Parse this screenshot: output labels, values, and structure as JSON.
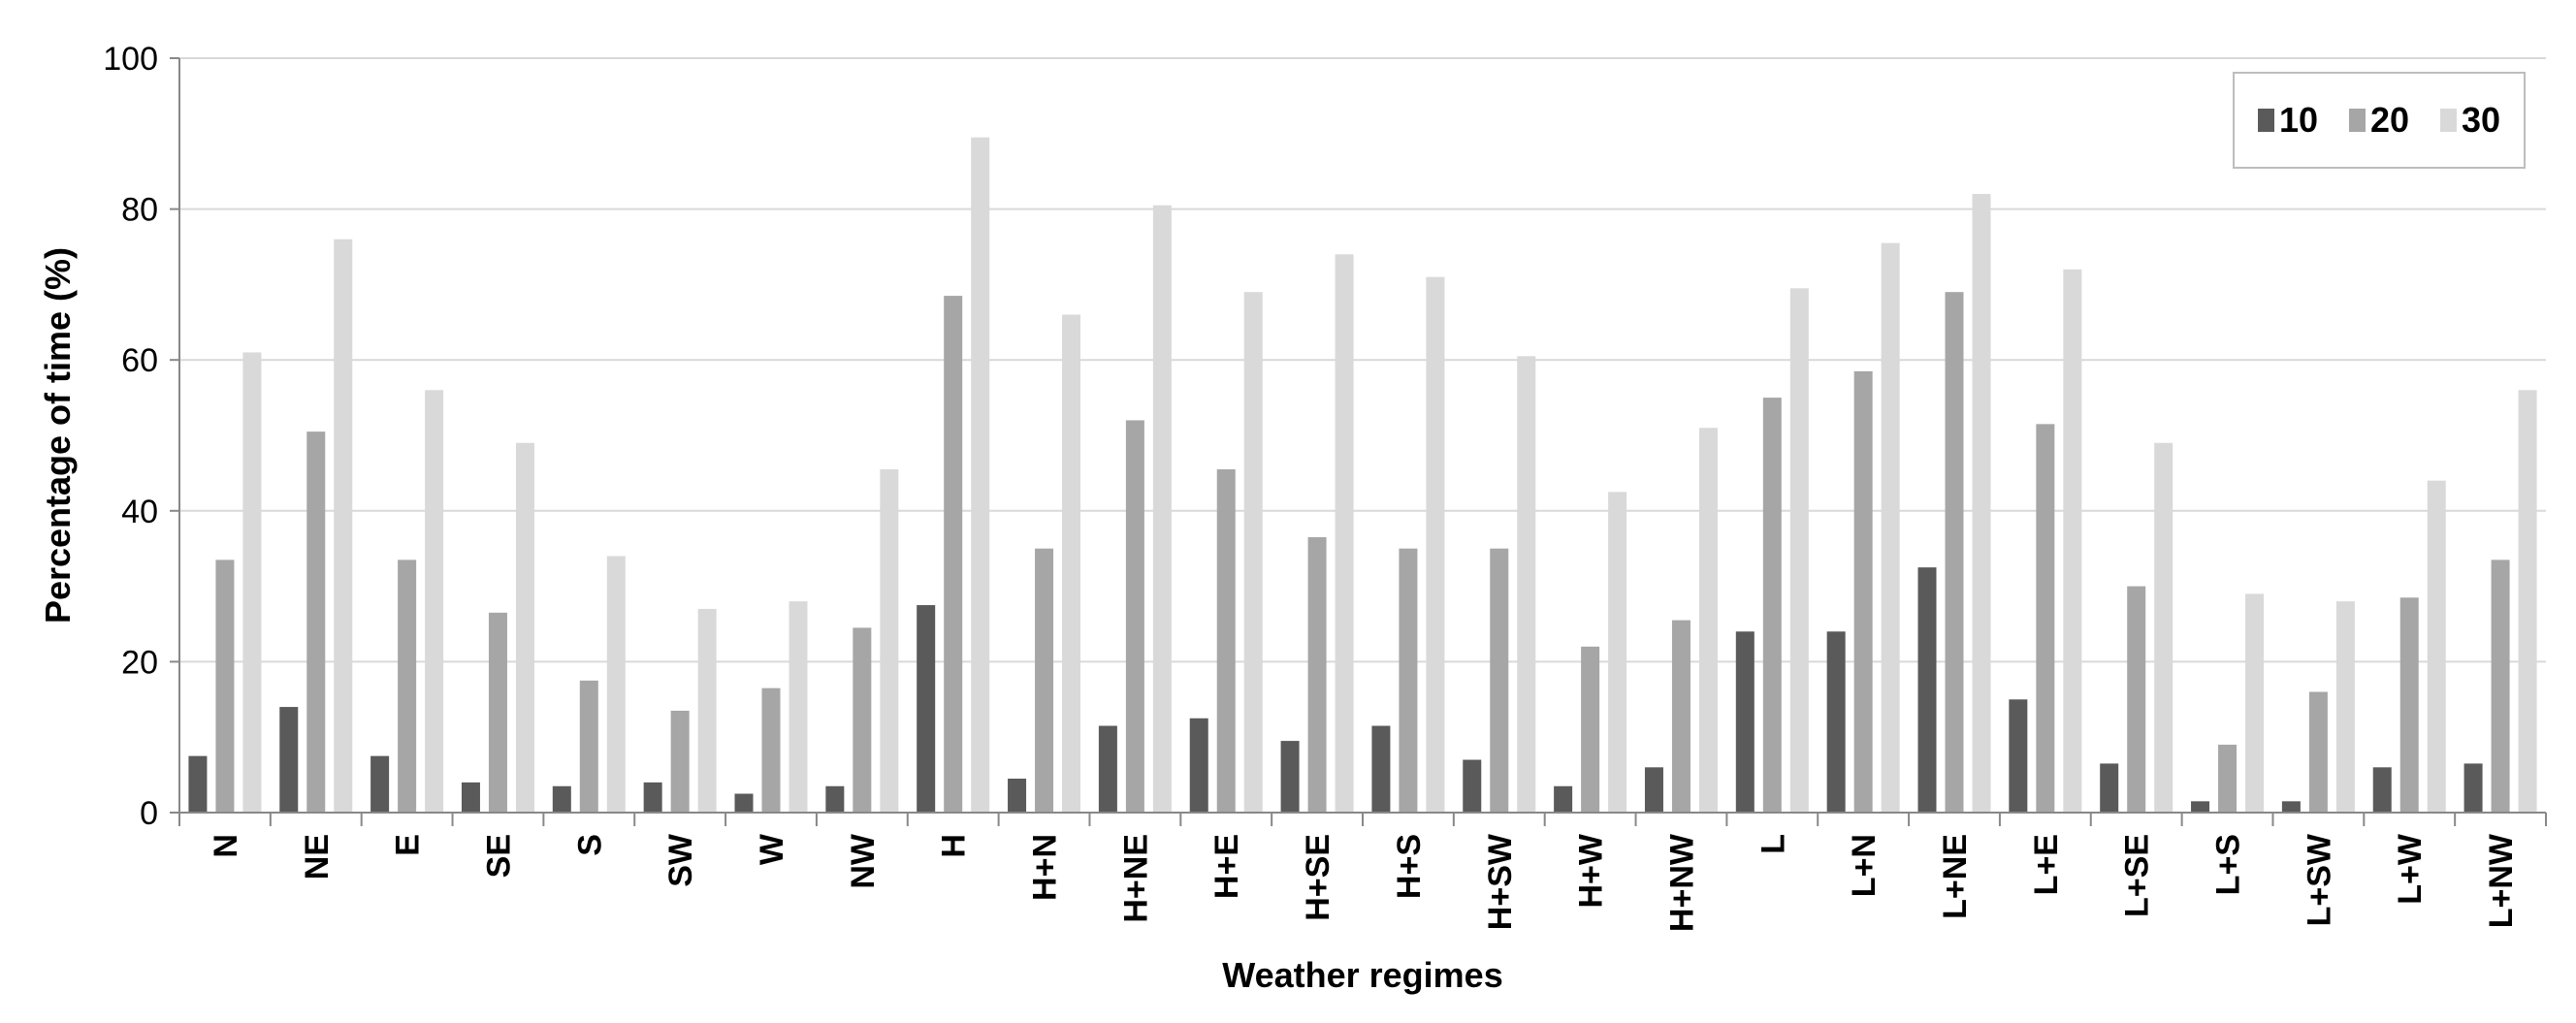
{
  "chart_data": {
    "type": "bar",
    "title": "",
    "xlabel": "Weather regimes",
    "ylabel": "Percentage of time (%)",
    "ylim": [
      0,
      100
    ],
    "yticks": [
      0,
      20,
      40,
      60,
      80,
      100
    ],
    "grid": "horizontal",
    "legend_position": "top-right",
    "categories": [
      "N",
      "NE",
      "E",
      "SE",
      "S",
      "SW",
      "W",
      "NW",
      "H",
      "H+N",
      "H+NE",
      "H+E",
      "H+SE",
      "H+S",
      "H+SW",
      "H+W",
      "H+NW",
      "L",
      "L+N",
      "L+NE",
      "L+E",
      "L+SE",
      "L+S",
      "L+SW",
      "L+W",
      "L+NW"
    ],
    "series": [
      {
        "name": "10",
        "color": "#5a5a5a",
        "values": [
          7.5,
          14,
          7.5,
          4,
          3.5,
          4,
          2.5,
          3.5,
          27.5,
          4.5,
          11.5,
          12.5,
          9.5,
          11.5,
          7,
          3.5,
          6,
          24,
          24,
          32.5,
          15,
          6.5,
          1.5,
          1.5,
          6,
          6.5
        ]
      },
      {
        "name": "20",
        "color": "#a6a6a6",
        "values": [
          33.5,
          50.5,
          33.5,
          26.5,
          17.5,
          13.5,
          16.5,
          24.5,
          68.5,
          35,
          52,
          45.5,
          36.5,
          35,
          35,
          22,
          25.5,
          55,
          58.5,
          69,
          51.5,
          30,
          9,
          16,
          28.5,
          33.5
        ]
      },
      {
        "name": "30",
        "color": "#d9d9d9",
        "values": [
          61,
          76,
          56,
          49,
          34,
          27,
          28,
          45.5,
          89.5,
          66,
          80.5,
          69,
          74,
          71,
          60.5,
          42.5,
          51,
          69.5,
          75.5,
          82,
          72,
          49,
          29,
          28,
          44,
          56
        ]
      }
    ]
  }
}
